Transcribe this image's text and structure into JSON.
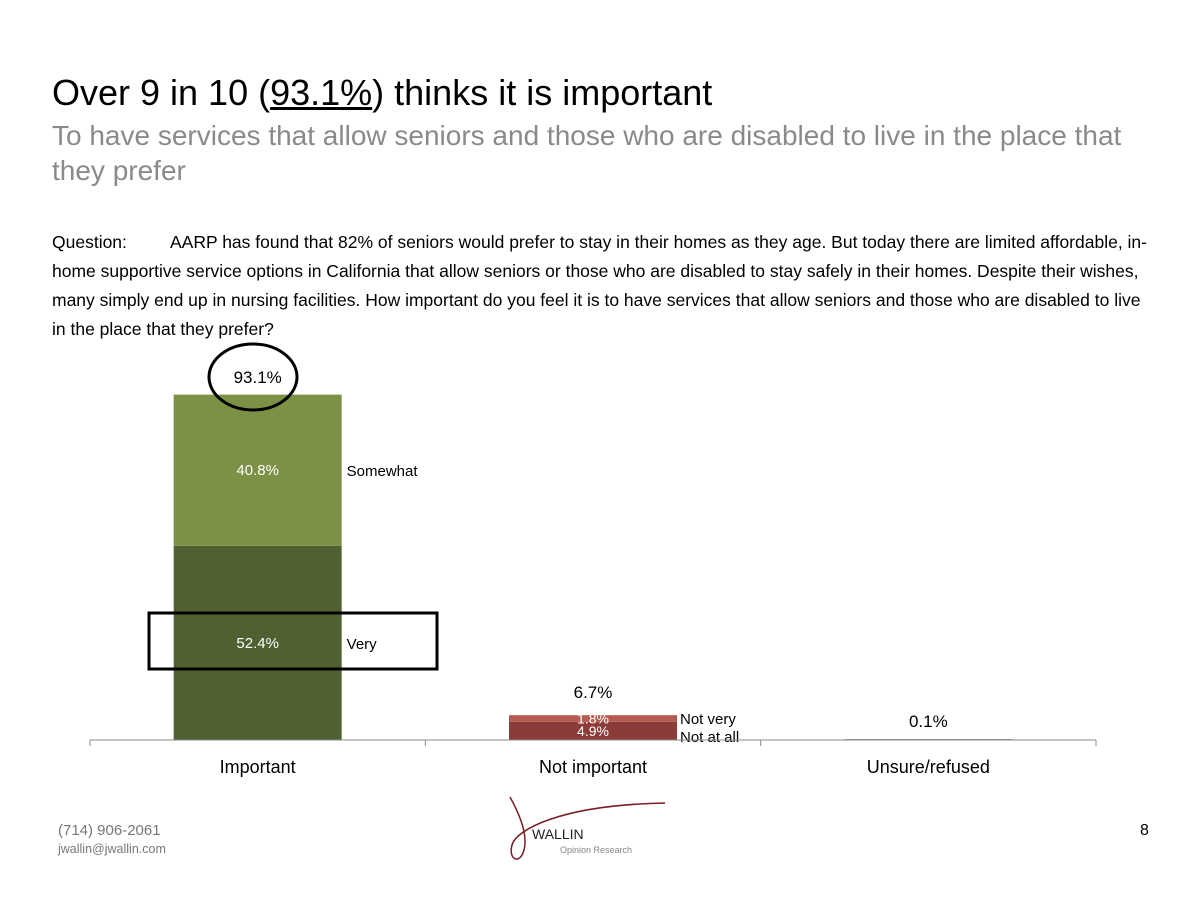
{
  "title": {
    "before": "Over 9 in 10 (",
    "highlight": "93.1%",
    "after": ") thinks it is important"
  },
  "subtitle": "To have services that allow seniors and those who are disabled to live in the place that they prefer",
  "question": {
    "label": "Question:",
    "text": "AARP has found that 82% of seniors would prefer to stay in their homes as they age. But today there are limited affordable, in-home supportive service options in California that allow seniors or those who are disabled to stay safely in their homes. Despite their wishes, many simply end up in nursing facilities. How important do you feel it is to have services that allow seniors and those who are disabled to live in the place that they prefer?"
  },
  "chart_data": {
    "type": "bar",
    "stacked": true,
    "categories": [
      "Important",
      "Not important",
      "Unsure/refused"
    ],
    "totals": [
      93.1,
      6.7,
      0.1
    ],
    "total_labels": [
      "93.1%",
      "6.7%",
      "0.1%"
    ],
    "stacks": [
      {
        "category": "Important",
        "segments": [
          {
            "name": "Very",
            "value": 52.4,
            "label": "52.4%",
            "color": "#4f6130"
          },
          {
            "name": "Somewhat",
            "value": 40.8,
            "label": "40.8%",
            "color": "#7d9146"
          }
        ]
      },
      {
        "category": "Not important",
        "segments": [
          {
            "name": "Not at all",
            "value": 4.9,
            "label": "4.9%",
            "color": "#8b3c39"
          },
          {
            "name": "Not very",
            "value": 1.8,
            "label": "1.8%",
            "color": "#b55a50"
          }
        ]
      },
      {
        "category": "Unsure/refused",
        "segments": [
          {
            "name": "Unsure/refused",
            "value": 0.1,
            "label": "",
            "color": "#999999"
          }
        ]
      }
    ],
    "ylim": [
      0,
      100
    ],
    "grid": false
  },
  "footer": {
    "phone": "(714) 906-2061",
    "email": "jwallin@jwallin.com",
    "page": "8",
    "logo": "WALLIN",
    "logo_sub": "Opinion Research"
  }
}
